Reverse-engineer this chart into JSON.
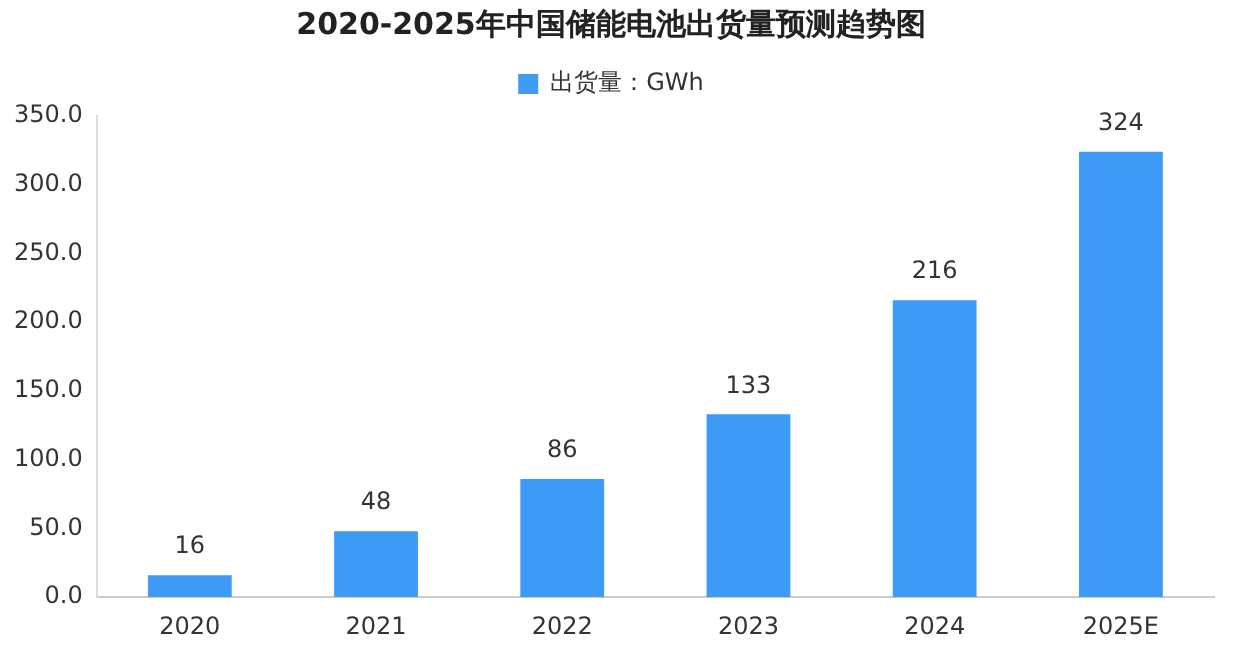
{
  "chart_data": {
    "type": "bar",
    "title": "2020-2025年中国储能电池出货量预测趋势图",
    "categories": [
      "2020",
      "2021",
      "2022",
      "2023",
      "2024",
      "2025E"
    ],
    "series": [
      {
        "name": "出货量：GWh",
        "color": "#3d9bf5",
        "values": [
          16,
          48,
          86,
          133,
          216,
          324
        ]
      }
    ],
    "ylim": [
      0,
      350
    ],
    "yticks": [
      {
        "value": 0,
        "label": "0.0"
      },
      {
        "value": 50,
        "label": "50.0"
      },
      {
        "value": 100,
        "label": "100.0"
      },
      {
        "value": 150,
        "label": "150.0"
      },
      {
        "value": 200,
        "label": "200.0"
      },
      {
        "value": 250,
        "label": "250.0"
      },
      {
        "value": 300,
        "label": "300.0"
      },
      {
        "value": 350,
        "label": "350.0"
      }
    ],
    "grid": false,
    "legend": "top",
    "data_labels": true
  }
}
